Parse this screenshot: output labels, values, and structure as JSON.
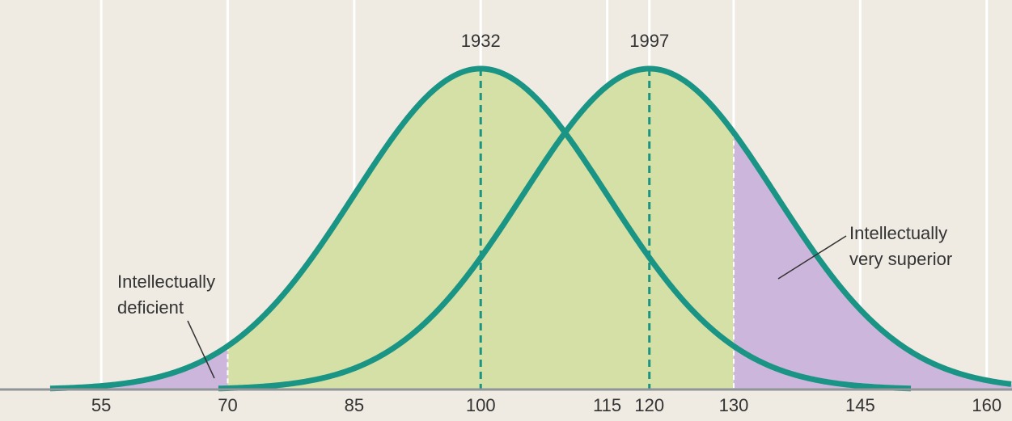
{
  "chart_data": {
    "type": "normal-curves",
    "xlim": [
      43,
      163
    ],
    "xticks": [
      55,
      70,
      85,
      100,
      115,
      120,
      130,
      145,
      160
    ],
    "series": [
      {
        "name": "1932",
        "mean": 100,
        "sd": 15,
        "color": "#1a9484"
      },
      {
        "name": "1997",
        "mean": 120,
        "sd": 15,
        "color": "#1a9484"
      }
    ],
    "fill_color": "#d5e0a6",
    "regions": [
      {
        "label": [
          "Intellectually",
          "deficient"
        ],
        "max": 70,
        "series": 0,
        "color": "#cdb6db"
      },
      {
        "label": [
          "Intellectually",
          "very superior"
        ],
        "min": 130,
        "series": 1,
        "color": "#cdb6db"
      }
    ],
    "grid": true
  }
}
